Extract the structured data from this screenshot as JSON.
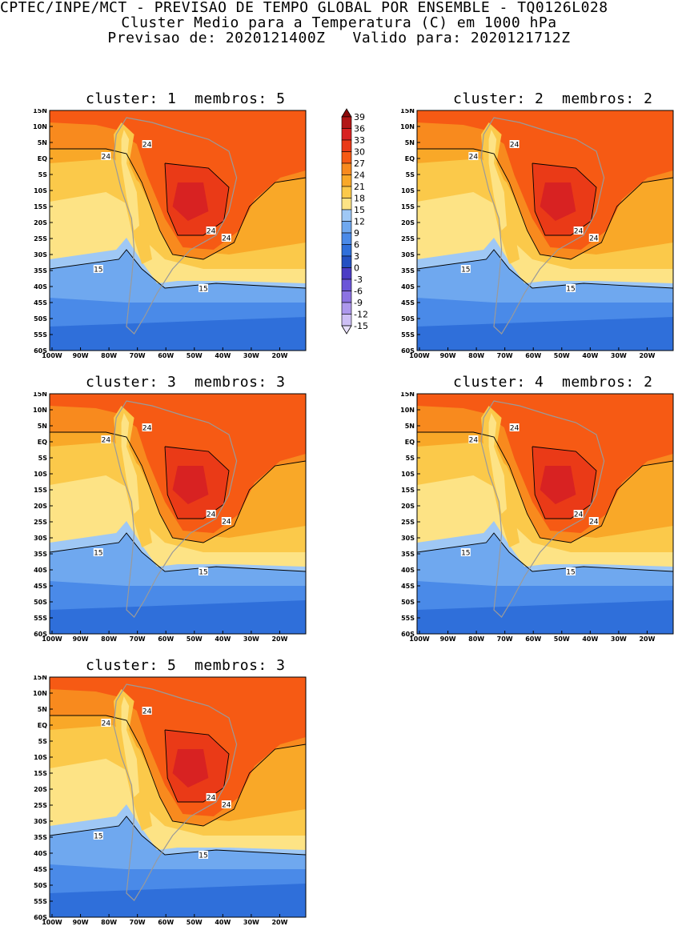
{
  "header": {
    "line1": "CPTEC/INPE/MCT - PREVISAO DE TEMPO GLOBAL POR ENSEMBLE - TQ0126L028",
    "line2": "Cluster Medio para a Temperatura (C) em 1000 hPa",
    "line3": "Previsao de: 2020121400Z   Valido para: 2020121712Z"
  },
  "panels": [
    {
      "title": "cluster: 1  membros: 5",
      "iso24": "24",
      "iso15": "15"
    },
    {
      "title": "cluster: 2  membros: 2",
      "iso24": "24",
      "iso15": "15"
    },
    {
      "title": "cluster: 3  membros: 3",
      "iso24": "24",
      "iso15": "15"
    },
    {
      "title": "cluster: 4  membros: 2",
      "iso24": "24",
      "iso15": "15"
    },
    {
      "title": "cluster: 5  membros: 3",
      "iso24": "24",
      "iso15": "15"
    }
  ],
  "axes": {
    "lat_ticks": [
      "15N",
      "10N",
      "5N",
      "EQ",
      "5S",
      "10S",
      "15S",
      "20S",
      "25S",
      "30S",
      "35S",
      "40S",
      "45S",
      "50S",
      "55S",
      "60S"
    ],
    "lon_ticks": [
      "100W",
      "90W",
      "80W",
      "70W",
      "60W",
      "50W",
      "40W",
      "30W",
      "20W"
    ]
  },
  "colorbar": {
    "labels": [
      "39",
      "36",
      "33",
      "30",
      "27",
      "24",
      "21",
      "18",
      "15",
      "12",
      "9",
      "6",
      "3",
      "0",
      "-3",
      "-6",
      "-9",
      "-12",
      "-15"
    ],
    "colors": [
      "#8c0a0a",
      "#b21616",
      "#d82222",
      "#ea3a17",
      "#f65a14",
      "#f88a1e",
      "#f9a828",
      "#fbc94a",
      "#fde385",
      "#9fc8f5",
      "#6fa8ef",
      "#4a8ae8",
      "#2f6fda",
      "#2350c2",
      "#4b3cc5",
      "#6b55d8",
      "#8c72e2",
      "#ad98ec",
      "#cdbff5",
      "#e8e0fb"
    ]
  }
}
